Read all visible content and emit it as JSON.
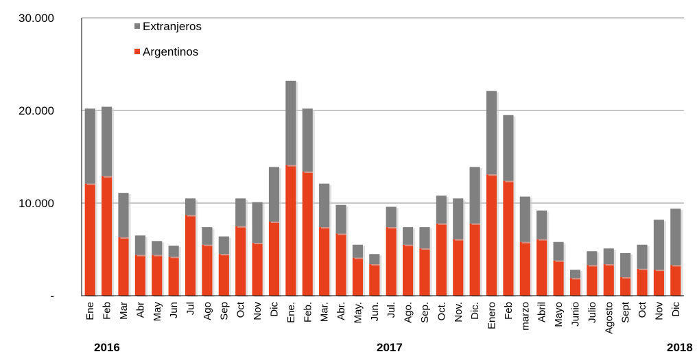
{
  "chart_data": {
    "type": "bar",
    "stacked": true,
    "title": "",
    "xlabel": "",
    "ylabel": "",
    "ylim": [
      0,
      30000
    ],
    "yticks": [
      {
        "value": 0,
        "label": "-"
      },
      {
        "value": 10000,
        "label": "10.000"
      },
      {
        "value": 20000,
        "label": "20.000"
      },
      {
        "value": 30000,
        "label": "30.000"
      }
    ],
    "grid": true,
    "legend_position": "top-left",
    "categories": [
      "Ene",
      "Feb",
      "Mar",
      "Abr",
      "May",
      "Jun",
      "Jul",
      "Ago",
      "Sep",
      "Oct",
      "Nov",
      "Dic",
      "Ene.",
      "Feb.",
      "Mar.",
      "Abr.",
      "May.",
      "Jun.",
      "Jul.",
      "Ago.",
      "Sep.",
      "Oct.",
      "Nov.",
      "Dic.",
      "Enero",
      "Feb",
      "marzo",
      "Abril",
      "Mayo",
      "Junio",
      "Julio",
      "Agosto",
      "Sept",
      "Oct",
      "Nov",
      "Dic"
    ],
    "years": [
      {
        "label": "2016",
        "start_index": 0
      },
      {
        "label": "2017",
        "start_index": 12
      },
      {
        "label": "2018",
        "start_index": 24
      }
    ],
    "series": [
      {
        "name": "Argentinos",
        "color": "#e8401c",
        "values": [
          12100,
          12900,
          6300,
          4400,
          4400,
          4200,
          8700,
          5500,
          4500,
          7500,
          5700,
          8000,
          14100,
          13400,
          7400,
          6700,
          4100,
          3400,
          7400,
          5500,
          5100,
          7800,
          6100,
          7800,
          13100,
          12400,
          5800,
          6100,
          3800,
          1900,
          3300,
          3400,
          2000,
          2900,
          2800,
          3300
        ]
      },
      {
        "name": "Extranjeros",
        "color": "#808080",
        "values": [
          8100,
          7500,
          4800,
          2100,
          1500,
          1200,
          1800,
          1900,
          1900,
          3000,
          4400,
          5900,
          9100,
          6800,
          4700,
          3100,
          1400,
          1100,
          2200,
          1900,
          2300,
          3000,
          4400,
          6100,
          9000,
          7100,
          4900,
          3100,
          2000,
          900,
          1500,
          1700,
          2600,
          2600,
          5400,
          6100
        ]
      }
    ]
  }
}
